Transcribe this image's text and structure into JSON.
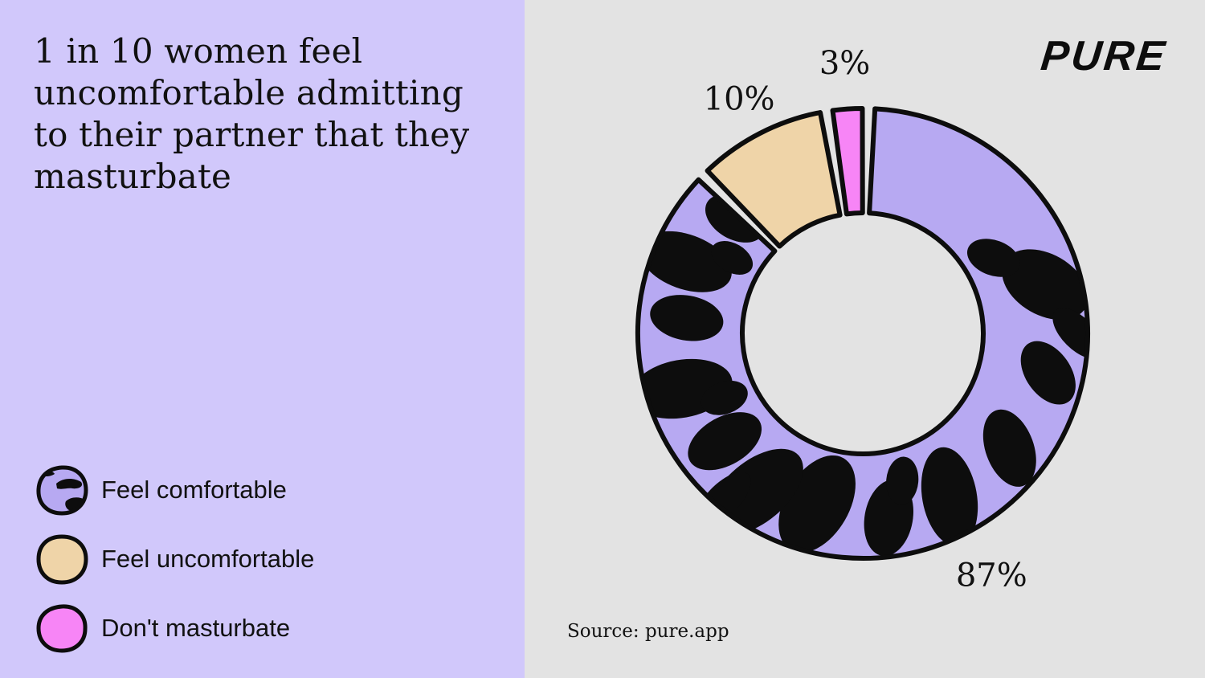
{
  "title": "1 in 10 women feel uncomfortable admitting to their partner that they masturbate",
  "brand": {
    "logo_text": "PURE"
  },
  "source": "Source: pure.app",
  "colors": {
    "left_background": "#d1c8fb",
    "right_background": "#e3e3e3",
    "outline": "#0d0d0d"
  },
  "legend": [
    {
      "label": "Feel comfortable",
      "color": "#b7a9f2",
      "pattern": "cow-print"
    },
    {
      "label": "Feel uncomfortable",
      "color": "#efd4a8",
      "pattern": "solid"
    },
    {
      "label": "Don't masturbate",
      "color": "#f785f6",
      "pattern": "solid"
    }
  ],
  "chart_data": {
    "type": "pie",
    "style": "donut",
    "title": "1 in 10 women feel uncomfortable admitting to their partner that they masturbate",
    "slices": [
      {
        "label": "Feel comfortable",
        "value": 87,
        "display": "87%",
        "color": "#b7a9f2"
      },
      {
        "label": "Feel uncomfortable",
        "value": 10,
        "display": "10%",
        "color": "#efd4a8"
      },
      {
        "label": "Don't masturbate",
        "value": 3,
        "display": "3%",
        "color": "#f785f6"
      }
    ],
    "legend_position": "bottom-left",
    "grid": false
  }
}
